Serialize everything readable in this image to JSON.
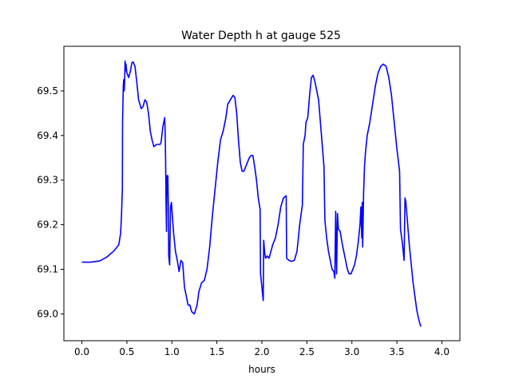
{
  "chart_data": {
    "type": "line",
    "title": "Water Depth h at gauge 525",
    "xlabel": "hours",
    "ylabel": "",
    "xlim": [
      -0.2,
      4.2
    ],
    "ylim": [
      68.94,
      69.6
    ],
    "xticks": [
      0.0,
      0.5,
      1.0,
      1.5,
      2.0,
      2.5,
      3.0,
      3.5,
      4.0
    ],
    "xtick_labels": [
      "0.0",
      "0.5",
      "1.0",
      "1.5",
      "2.0",
      "2.5",
      "3.0",
      "3.5",
      "4.0"
    ],
    "yticks": [
      69.0,
      69.1,
      69.2,
      69.3,
      69.4,
      69.5
    ],
    "ytick_labels": [
      "69.0",
      "69.1",
      "69.2",
      "69.3",
      "69.4",
      "69.5"
    ],
    "grid": false,
    "legend": "none",
    "series": [
      {
        "color": "#0000ff",
        "points": [
          [
            0.0,
            69.116
          ],
          [
            0.1,
            69.116
          ],
          [
            0.2,
            69.119
          ],
          [
            0.28,
            69.128
          ],
          [
            0.36,
            69.142
          ],
          [
            0.41,
            69.155
          ],
          [
            0.43,
            69.18
          ],
          [
            0.44,
            69.22
          ],
          [
            0.45,
            69.28
          ],
          [
            0.452,
            69.43
          ],
          [
            0.46,
            69.51
          ],
          [
            0.465,
            69.525
          ],
          [
            0.47,
            69.5
          ],
          [
            0.475,
            69.52
          ],
          [
            0.48,
            69.567
          ],
          [
            0.485,
            69.545
          ],
          [
            0.49,
            69.56
          ],
          [
            0.5,
            69.54
          ],
          [
            0.52,
            69.53
          ],
          [
            0.54,
            69.545
          ],
          [
            0.555,
            69.563
          ],
          [
            0.57,
            69.565
          ],
          [
            0.59,
            69.555
          ],
          [
            0.61,
            69.52
          ],
          [
            0.63,
            69.48
          ],
          [
            0.66,
            69.46
          ],
          [
            0.68,
            69.465
          ],
          [
            0.7,
            69.48
          ],
          [
            0.72,
            69.475
          ],
          [
            0.74,
            69.45
          ],
          [
            0.76,
            69.41
          ],
          [
            0.78,
            69.39
          ],
          [
            0.8,
            69.375
          ],
          [
            0.83,
            69.38
          ],
          [
            0.87,
            69.38
          ],
          [
            0.88,
            69.385
          ],
          [
            0.9,
            69.42
          ],
          [
            0.91,
            69.43
          ],
          [
            0.92,
            69.44
          ],
          [
            0.925,
            69.41
          ],
          [
            0.93,
            69.35
          ],
          [
            0.935,
            69.25
          ],
          [
            0.94,
            69.185
          ],
          [
            0.945,
            69.31
          ],
          [
            0.95,
            69.3
          ],
          [
            0.955,
            69.31
          ],
          [
            0.96,
            69.25
          ],
          [
            0.965,
            69.13
          ],
          [
            0.975,
            69.11
          ],
          [
            0.985,
            69.24
          ],
          [
            0.995,
            69.25
          ],
          [
            1.005,
            69.22
          ],
          [
            1.02,
            69.18
          ],
          [
            1.04,
            69.14
          ],
          [
            1.06,
            69.12
          ],
          [
            1.08,
            69.095
          ],
          [
            1.1,
            69.12
          ],
          [
            1.12,
            69.115
          ],
          [
            1.14,
            69.06
          ],
          [
            1.16,
            69.04
          ],
          [
            1.18,
            69.02
          ],
          [
            1.2,
            69.02
          ],
          [
            1.22,
            69.005
          ],
          [
            1.25,
            69.0
          ],
          [
            1.28,
            69.02
          ],
          [
            1.3,
            69.05
          ],
          [
            1.33,
            69.07
          ],
          [
            1.36,
            69.075
          ],
          [
            1.39,
            69.1
          ],
          [
            1.42,
            69.15
          ],
          [
            1.45,
            69.22
          ],
          [
            1.48,
            69.28
          ],
          [
            1.51,
            69.34
          ],
          [
            1.54,
            69.39
          ],
          [
            1.57,
            69.41
          ],
          [
            1.6,
            69.44
          ],
          [
            1.62,
            69.47
          ],
          [
            1.65,
            69.48
          ],
          [
            1.68,
            69.49
          ],
          [
            1.7,
            69.485
          ],
          [
            1.72,
            69.45
          ],
          [
            1.74,
            69.39
          ],
          [
            1.76,
            69.34
          ],
          [
            1.78,
            69.32
          ],
          [
            1.8,
            69.32
          ],
          [
            1.82,
            69.33
          ],
          [
            1.84,
            69.34
          ],
          [
            1.86,
            69.35
          ],
          [
            1.88,
            69.355
          ],
          [
            1.9,
            69.355
          ],
          [
            1.92,
            69.33
          ],
          [
            1.94,
            69.3
          ],
          [
            1.96,
            69.26
          ],
          [
            1.98,
            69.235
          ],
          [
            1.985,
            69.09
          ],
          [
            2.0,
            69.06
          ],
          [
            2.015,
            69.03
          ],
          [
            2.02,
            69.165
          ],
          [
            2.03,
            69.14
          ],
          [
            2.04,
            69.125
          ],
          [
            2.06,
            69.13
          ],
          [
            2.08,
            69.125
          ],
          [
            2.1,
            69.14
          ],
          [
            2.12,
            69.155
          ],
          [
            2.15,
            69.17
          ],
          [
            2.18,
            69.2
          ],
          [
            2.21,
            69.24
          ],
          [
            2.24,
            69.26
          ],
          [
            2.27,
            69.265
          ],
          [
            2.275,
            69.125
          ],
          [
            2.3,
            69.12
          ],
          [
            2.33,
            69.118
          ],
          [
            2.36,
            69.12
          ],
          [
            2.39,
            69.14
          ],
          [
            2.42,
            69.2
          ],
          [
            2.45,
            69.245
          ],
          [
            2.46,
            69.38
          ],
          [
            2.48,
            69.4
          ],
          [
            2.49,
            69.43
          ],
          [
            2.51,
            69.44
          ],
          [
            2.53,
            69.49
          ],
          [
            2.55,
            69.53
          ],
          [
            2.57,
            69.535
          ],
          [
            2.59,
            69.52
          ],
          [
            2.61,
            69.5
          ],
          [
            2.63,
            69.48
          ],
          [
            2.65,
            69.43
          ],
          [
            2.67,
            69.38
          ],
          [
            2.69,
            69.33
          ],
          [
            2.7,
            69.21
          ],
          [
            2.72,
            69.17
          ],
          [
            2.74,
            69.14
          ],
          [
            2.76,
            69.12
          ],
          [
            2.78,
            69.1
          ],
          [
            2.8,
            69.095
          ],
          [
            2.81,
            69.08
          ],
          [
            2.82,
            69.23
          ],
          [
            2.83,
            69.09
          ],
          [
            2.84,
            69.225
          ],
          [
            2.85,
            69.19
          ],
          [
            2.87,
            69.185
          ],
          [
            2.89,
            69.16
          ],
          [
            2.91,
            69.14
          ],
          [
            2.93,
            69.12
          ],
          [
            2.95,
            69.1
          ],
          [
            2.97,
            69.09
          ],
          [
            2.99,
            69.09
          ],
          [
            3.01,
            69.1
          ],
          [
            3.03,
            69.11
          ],
          [
            3.05,
            69.13
          ],
          [
            3.07,
            69.16
          ],
          [
            3.09,
            69.2
          ],
          [
            3.1,
            69.24
          ],
          [
            3.11,
            69.17
          ],
          [
            3.115,
            69.25
          ],
          [
            3.12,
            69.15
          ],
          [
            3.13,
            69.27
          ],
          [
            3.14,
            69.33
          ],
          [
            3.15,
            69.36
          ],
          [
            3.17,
            69.4
          ],
          [
            3.2,
            69.43
          ],
          [
            3.23,
            69.47
          ],
          [
            3.26,
            69.51
          ],
          [
            3.29,
            69.54
          ],
          [
            3.32,
            69.555
          ],
          [
            3.35,
            69.56
          ],
          [
            3.38,
            69.555
          ],
          [
            3.41,
            69.53
          ],
          [
            3.44,
            69.49
          ],
          [
            3.47,
            69.43
          ],
          [
            3.5,
            69.37
          ],
          [
            3.53,
            69.32
          ],
          [
            3.54,
            69.19
          ],
          [
            3.56,
            69.16
          ],
          [
            3.58,
            69.12
          ],
          [
            3.59,
            69.26
          ],
          [
            3.6,
            69.25
          ],
          [
            3.62,
            69.2
          ],
          [
            3.64,
            69.15
          ],
          [
            3.66,
            69.11
          ],
          [
            3.68,
            69.07
          ],
          [
            3.7,
            69.04
          ],
          [
            3.72,
            69.01
          ],
          [
            3.74,
            68.99
          ],
          [
            3.76,
            68.975
          ],
          [
            3.77,
            68.972
          ]
        ]
      }
    ]
  }
}
